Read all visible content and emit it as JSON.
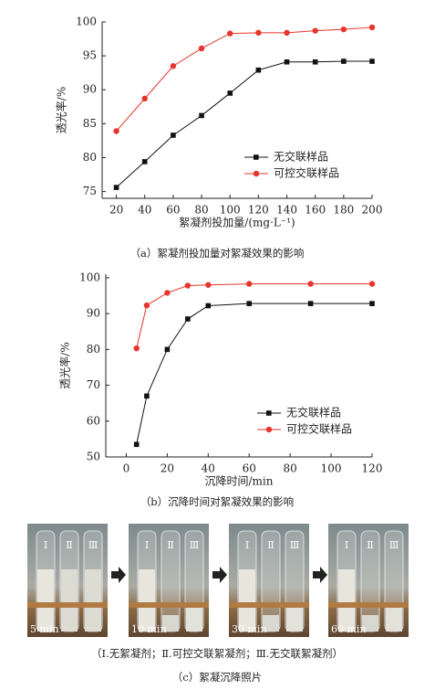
{
  "chart_data": [
    {
      "type": "line",
      "x_label": "絮凝剂投加量/(mg·L⁻¹)",
      "y_label": "透光率/%",
      "caption": "（a）絮凝剂投加量对絮凝效果的影响",
      "x": [
        20,
        40,
        60,
        80,
        100,
        120,
        140,
        160,
        180,
        200
      ],
      "series": [
        {
          "name": "无交联样品",
          "color": "#111111",
          "marker": "square",
          "values": [
            75.6,
            79.4,
            83.3,
            86.2,
            89.5,
            92.9,
            94.1,
            94.1,
            94.2,
            94.2
          ]
        },
        {
          "name": "可控交联样品",
          "color": "#e8352b",
          "marker": "circle",
          "values": [
            83.9,
            88.7,
            93.5,
            96.1,
            98.3,
            98.4,
            98.4,
            98.7,
            98.9,
            99.2
          ]
        }
      ],
      "xlim": [
        10,
        200
      ],
      "xticks": [
        20,
        40,
        60,
        80,
        100,
        120,
        140,
        160,
        180,
        200
      ],
      "ylim": [
        74,
        100
      ],
      "yticks": [
        75,
        80,
        85,
        90,
        95,
        100
      ]
    },
    {
      "type": "line",
      "x_label": "沉降时间/min",
      "y_label": "透光率/%",
      "caption": "（b）沉降时间对絮凝效果的影响",
      "x": [
        5,
        10,
        20,
        30,
        40,
        60,
        90,
        120
      ],
      "series": [
        {
          "name": "无交联样品",
          "color": "#111111",
          "marker": "square",
          "values": [
            53.5,
            67,
            80,
            88.5,
            92.2,
            92.8,
            92.8,
            92.8
          ]
        },
        {
          "name": "可控交联样品",
          "color": "#e8352b",
          "marker": "circle",
          "values": [
            80.3,
            92.3,
            95.8,
            97.8,
            98,
            98.3,
            98.3,
            98.3
          ]
        }
      ],
      "xlim": [
        -10,
        120
      ],
      "xticks": [
        0,
        20,
        40,
        60,
        80,
        100,
        120
      ],
      "ylim": [
        50,
        101
      ],
      "yticks": [
        50,
        60,
        70,
        80,
        90,
        100
      ]
    }
  ],
  "photos": {
    "times": [
      "5 min",
      "10 min",
      "30 min",
      "60 min"
    ],
    "tube_labels": [
      "Ⅰ",
      "Ⅱ",
      "Ⅲ"
    ],
    "legend": "（Ⅰ.无絮凝剂；Ⅱ.可控交联絮凝剂；Ⅲ.无交联絮凝剂）",
    "caption": "（c）絮凝沉降照片"
  }
}
